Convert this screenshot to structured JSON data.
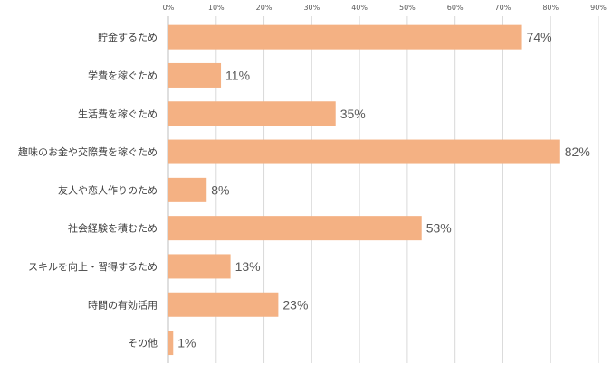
{
  "chart_data": {
    "type": "bar",
    "orientation": "horizontal",
    "categories": [
      "貯金するため",
      "学費を稼ぐため",
      "生活費を稼ぐため",
      "趣味のお金や交際費を稼ぐため",
      "友人や恋人作りのため",
      "社会経験を積むため",
      "スキルを向上・習得するため",
      "時間の有効活用",
      "その他"
    ],
    "values": [
      74,
      11,
      35,
      82,
      8,
      53,
      13,
      23,
      1
    ],
    "value_labels": [
      "74%",
      "11%",
      "35%",
      "82%",
      "8%",
      "53%",
      "13%",
      "23%",
      "1%"
    ],
    "xlim": [
      0,
      90
    ],
    "x_ticks": [
      0,
      10,
      20,
      30,
      40,
      50,
      60,
      70,
      80,
      90
    ],
    "x_tick_labels": [
      "0%",
      "10%",
      "20%",
      "30%",
      "40%",
      "50%",
      "60%",
      "70%",
      "80%",
      "90%"
    ],
    "x_axis_position": "top",
    "grid": true,
    "legend": "none",
    "bar_color": "#f4b183",
    "title": "",
    "xlabel": "",
    "ylabel": ""
  }
}
